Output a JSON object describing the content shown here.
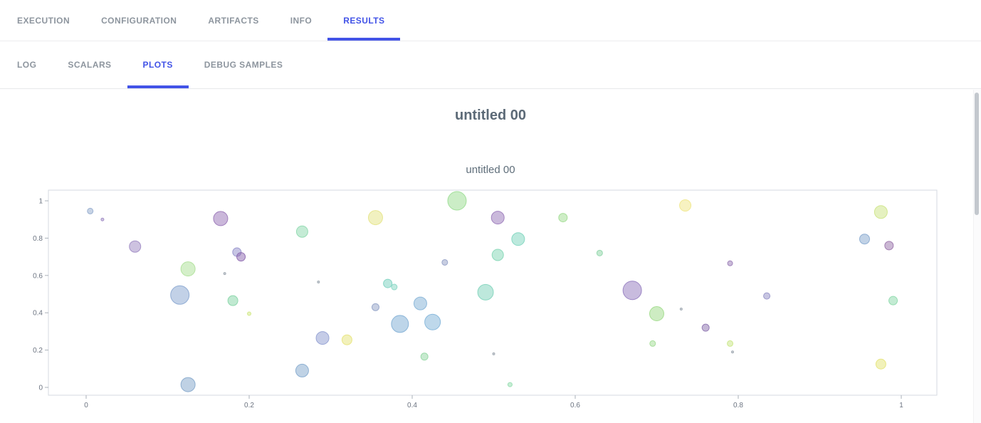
{
  "nav": {
    "tabs": [
      {
        "label": "EXECUTION",
        "active": false
      },
      {
        "label": "CONFIGURATION",
        "active": false
      },
      {
        "label": "ARTIFACTS",
        "active": false
      },
      {
        "label": "INFO",
        "active": false
      },
      {
        "label": "RESULTS",
        "active": true
      }
    ]
  },
  "subnav": {
    "tabs": [
      {
        "label": "LOG",
        "active": false
      },
      {
        "label": "SCALARS",
        "active": false
      },
      {
        "label": "PLOTS",
        "active": true
      },
      {
        "label": "DEBUG SAMPLES",
        "active": false
      }
    ]
  },
  "content": {
    "section_title": "untitled 00"
  },
  "colors": {
    "accent": "#4253e7",
    "inactive_tab": "#8d959e",
    "frame": "#d6dae0",
    "tick_label": "#6b7380"
  },
  "chart_data": {
    "type": "scatter",
    "title": "untitled 00",
    "xlabel": "",
    "ylabel": "",
    "xlim": [
      0,
      1
    ],
    "ylim": [
      0,
      1
    ],
    "xticks": [
      0,
      0.2,
      0.4,
      0.6,
      0.8,
      1
    ],
    "yticks": [
      0,
      0.2,
      0.4,
      0.6,
      0.8,
      1
    ],
    "grid": false,
    "legend": false,
    "points": [
      {
        "x": 0.005,
        "y": 0.945,
        "r": 4,
        "c": "#8fa8cc"
      },
      {
        "x": 0.02,
        "y": 0.9,
        "r": 2,
        "c": "#9b86c2"
      },
      {
        "x": 0.06,
        "y": 0.755,
        "r": 8,
        "c": "#9b86c2"
      },
      {
        "x": 0.125,
        "y": 0.635,
        "r": 10,
        "c": "#aadf94"
      },
      {
        "x": 0.115,
        "y": 0.495,
        "r": 13,
        "c": "#85a3cf"
      },
      {
        "x": 0.125,
        "y": 0.015,
        "r": 10,
        "c": "#7fa3c9"
      },
      {
        "x": 0.165,
        "y": 0.905,
        "r": 10,
        "c": "#9570b5"
      },
      {
        "x": 0.17,
        "y": 0.61,
        "r": 1.5,
        "c": "#9aa3ad"
      },
      {
        "x": 0.185,
        "y": 0.725,
        "r": 6,
        "c": "#8f8cc9"
      },
      {
        "x": 0.19,
        "y": 0.7,
        "r": 6,
        "c": "#8a64ad"
      },
      {
        "x": 0.18,
        "y": 0.465,
        "r": 7,
        "c": "#82d4a4"
      },
      {
        "x": 0.2,
        "y": 0.395,
        "r": 2.5,
        "c": "#cfe87e"
      },
      {
        "x": 0.265,
        "y": 0.835,
        "r": 8,
        "c": "#8ad8ac"
      },
      {
        "x": 0.265,
        "y": 0.09,
        "r": 9,
        "c": "#7fa6cc"
      },
      {
        "x": 0.285,
        "y": 0.565,
        "r": 1.5,
        "c": "#9aa3ad"
      },
      {
        "x": 0.29,
        "y": 0.265,
        "r": 9,
        "c": "#8c9ad0"
      },
      {
        "x": 0.32,
        "y": 0.255,
        "r": 7,
        "c": "#e6e378"
      },
      {
        "x": 0.355,
        "y": 0.91,
        "r": 10,
        "c": "#e4e382"
      },
      {
        "x": 0.355,
        "y": 0.43,
        "r": 5,
        "c": "#8fa0c6"
      },
      {
        "x": 0.37,
        "y": 0.557,
        "r": 6,
        "c": "#76d0bd"
      },
      {
        "x": 0.378,
        "y": 0.538,
        "r": 4,
        "c": "#82d6c2"
      },
      {
        "x": 0.385,
        "y": 0.34,
        "r": 12,
        "c": "#7babd4"
      },
      {
        "x": 0.41,
        "y": 0.45,
        "r": 9,
        "c": "#80b0d6"
      },
      {
        "x": 0.415,
        "y": 0.165,
        "r": 5,
        "c": "#8fd6a0"
      },
      {
        "x": 0.425,
        "y": 0.35,
        "r": 11,
        "c": "#7db2d8"
      },
      {
        "x": 0.44,
        "y": 0.67,
        "r": 4,
        "c": "#8f9cc4"
      },
      {
        "x": 0.455,
        "y": 1.0,
        "r": 13,
        "c": "#97dc8e"
      },
      {
        "x": 0.49,
        "y": 0.51,
        "r": 11,
        "c": "#7cd2ba"
      },
      {
        "x": 0.5,
        "y": 0.18,
        "r": 1.5,
        "c": "#9aa3ad"
      },
      {
        "x": 0.505,
        "y": 0.91,
        "r": 9,
        "c": "#9674b8"
      },
      {
        "x": 0.505,
        "y": 0.71,
        "r": 8,
        "c": "#80d6b4"
      },
      {
        "x": 0.52,
        "y": 0.015,
        "r": 3,
        "c": "#8fdcac"
      },
      {
        "x": 0.53,
        "y": 0.795,
        "r": 9,
        "c": "#7ad4bc"
      },
      {
        "x": 0.585,
        "y": 0.91,
        "r": 6,
        "c": "#9edc8e"
      },
      {
        "x": 0.63,
        "y": 0.72,
        "r": 4,
        "c": "#8ad4a4"
      },
      {
        "x": 0.67,
        "y": 0.52,
        "r": 13,
        "c": "#9178be"
      },
      {
        "x": 0.7,
        "y": 0.395,
        "r": 10,
        "c": "#9cda86"
      },
      {
        "x": 0.695,
        "y": 0.235,
        "r": 4,
        "c": "#a0dc92"
      },
      {
        "x": 0.73,
        "y": 0.42,
        "r": 1.5,
        "c": "#9aa3ad"
      },
      {
        "x": 0.735,
        "y": 0.975,
        "r": 8,
        "c": "#f0e684"
      },
      {
        "x": 0.76,
        "y": 0.32,
        "r": 5,
        "c": "#8a6fae"
      },
      {
        "x": 0.79,
        "y": 0.665,
        "r": 3.5,
        "c": "#9678b4"
      },
      {
        "x": 0.79,
        "y": 0.235,
        "r": 4,
        "c": "#c8e682"
      },
      {
        "x": 0.793,
        "y": 0.19,
        "r": 1.5,
        "c": "#9aa3ad"
      },
      {
        "x": 0.835,
        "y": 0.49,
        "r": 4.5,
        "c": "#8f8cc4"
      },
      {
        "x": 0.955,
        "y": 0.795,
        "r": 7,
        "c": "#84a6ce"
      },
      {
        "x": 0.975,
        "y": 0.94,
        "r": 9,
        "c": "#cce482"
      },
      {
        "x": 0.985,
        "y": 0.76,
        "r": 6,
        "c": "#966fa8"
      },
      {
        "x": 0.99,
        "y": 0.465,
        "r": 6,
        "c": "#88d8a8"
      },
      {
        "x": 0.975,
        "y": 0.125,
        "r": 7,
        "c": "#e4e374"
      }
    ]
  }
}
